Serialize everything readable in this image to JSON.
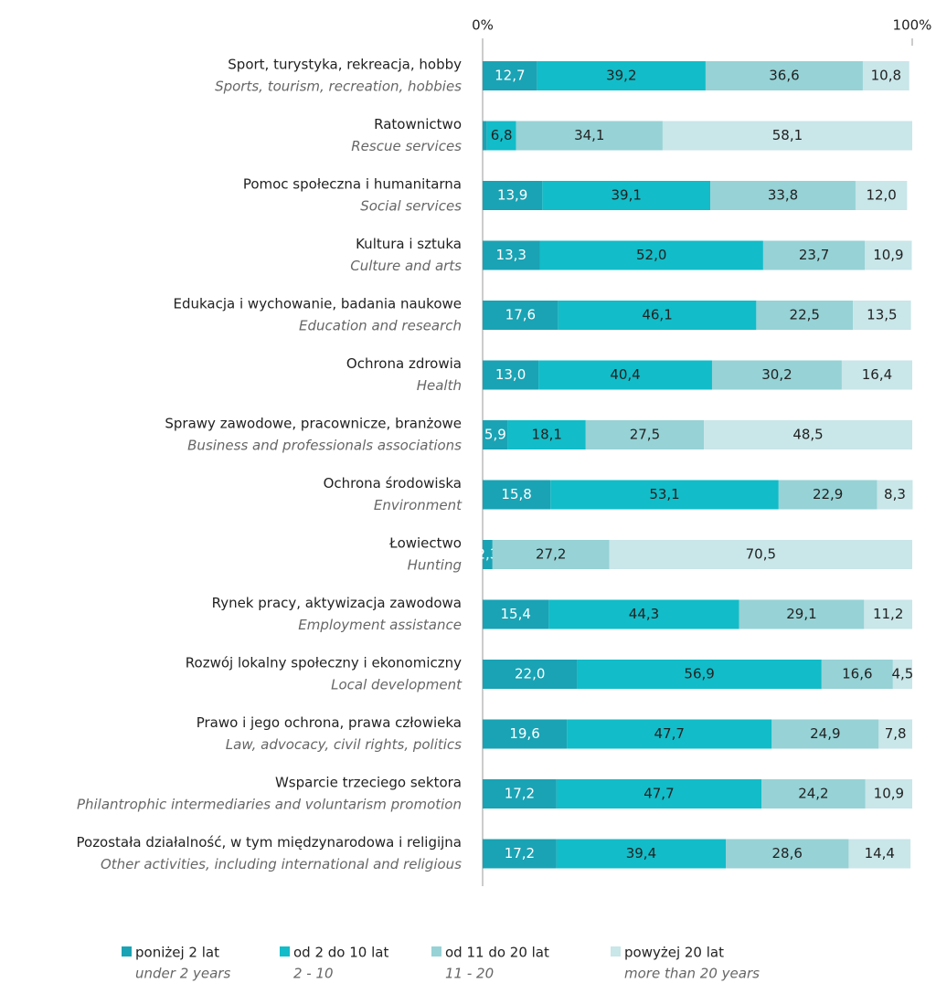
{
  "chart_data": {
    "type": "stacked-bar-horizontal",
    "categories": [
      "Sport, turystyka, rekreacja, hobby",
      "Ratownictwo",
      "Pomoc społeczna i humanitarna",
      "Kultura i sztuka",
      "Edukacja i wychowanie, badania naukowe",
      "Ochrona zdrowia",
      "Sprawy zawodowe, pracownicze, branżowe",
      "Ochrona środowiska",
      "Łowiectwo",
      "Rynek pracy, aktywizacja zawodowa",
      "Rozwój lokalny społeczny i ekonomiczny",
      "Prawo i jego ochrona, prawa człowieka",
      "Wsparcie trzeciego sektora",
      "Pozostała działalność, w tym międzynarodowa i religijna"
    ],
    "categories_en": [
      "Sports, tourism, recreation, hobbies",
      "Rescue services",
      "Social services",
      "Culture and arts",
      "Education and research",
      "Health",
      "Business and professionals associations",
      "Environment",
      "Hunting",
      "Employment assistance",
      "Local development",
      "Law, advocacy, civil rights, politics",
      "Philantrophic intermediaries and voluntarism promotion",
      "Other activities, including international and religious"
    ],
    "series": [
      {
        "name": "poniżej 2 lat",
        "name_en": "under 2 years",
        "color": "#1aa3b4",
        "label_color": "#ffffff",
        "values": [
          12.7,
          1.0,
          13.9,
          13.3,
          17.6,
          13.0,
          5.9,
          15.8,
          2.3,
          15.4,
          22.0,
          19.6,
          17.2,
          17.2
        ],
        "value_labels": [
          "12,7",
          null,
          "13,9",
          "13,3",
          "17,6",
          "13,0",
          "5,9",
          "15,8",
          "2,3",
          "15,4",
          "22,0",
          "19,6",
          "17,2",
          "17,2"
        ]
      },
      {
        "name": "od 2 do 10 lat",
        "name_en": "2 - 10",
        "color": "#12bcc8",
        "label_color": "#222222",
        "values": [
          39.2,
          6.8,
          39.1,
          52.0,
          46.1,
          40.4,
          18.1,
          53.1,
          null,
          44.3,
          56.9,
          47.7,
          47.7,
          39.4
        ],
        "value_labels": [
          "39,2",
          "6,8",
          "39,1",
          "52,0",
          "46,1",
          "40,4",
          "18,1",
          "53,1",
          null,
          "44,3",
          "56,9",
          "47,7",
          "47,7",
          "39,4"
        ]
      },
      {
        "name": "od 11 do 20 lat",
        "name_en": "11 - 20",
        "color": "#96d2d6",
        "label_color": "#222222",
        "values": [
          36.6,
          34.1,
          33.8,
          23.7,
          22.5,
          30.2,
          27.5,
          22.9,
          27.2,
          29.1,
          16.6,
          24.9,
          24.2,
          28.6
        ],
        "value_labels": [
          "36,6",
          "34,1",
          "33,8",
          "23,7",
          "22,5",
          "30,2",
          "27,5",
          "22,9",
          "27,2",
          "29,1",
          "16,6",
          "24,9",
          "24,2",
          "28,6"
        ]
      },
      {
        "name": "powyżej 20 lat",
        "name_en": "more than 20 years",
        "color": "#c9e6e9",
        "label_color": "#222222",
        "values": [
          10.8,
          58.1,
          12.0,
          10.9,
          13.5,
          16.4,
          48.5,
          8.3,
          70.5,
          11.2,
          4.5,
          7.8,
          10.9,
          14.4
        ],
        "value_labels": [
          "10,8",
          "58,1",
          "12,0",
          "10,9",
          "13,5",
          "16,4",
          "48,5",
          "8,3",
          "70,5",
          "11,2",
          "4,5",
          "7,8",
          "10,9",
          "14,4"
        ]
      }
    ],
    "xlim": [
      0,
      100
    ],
    "xticks": [
      {
        "value": 0,
        "label": "0%"
      },
      {
        "value": 100,
        "label": "100%"
      }
    ]
  }
}
